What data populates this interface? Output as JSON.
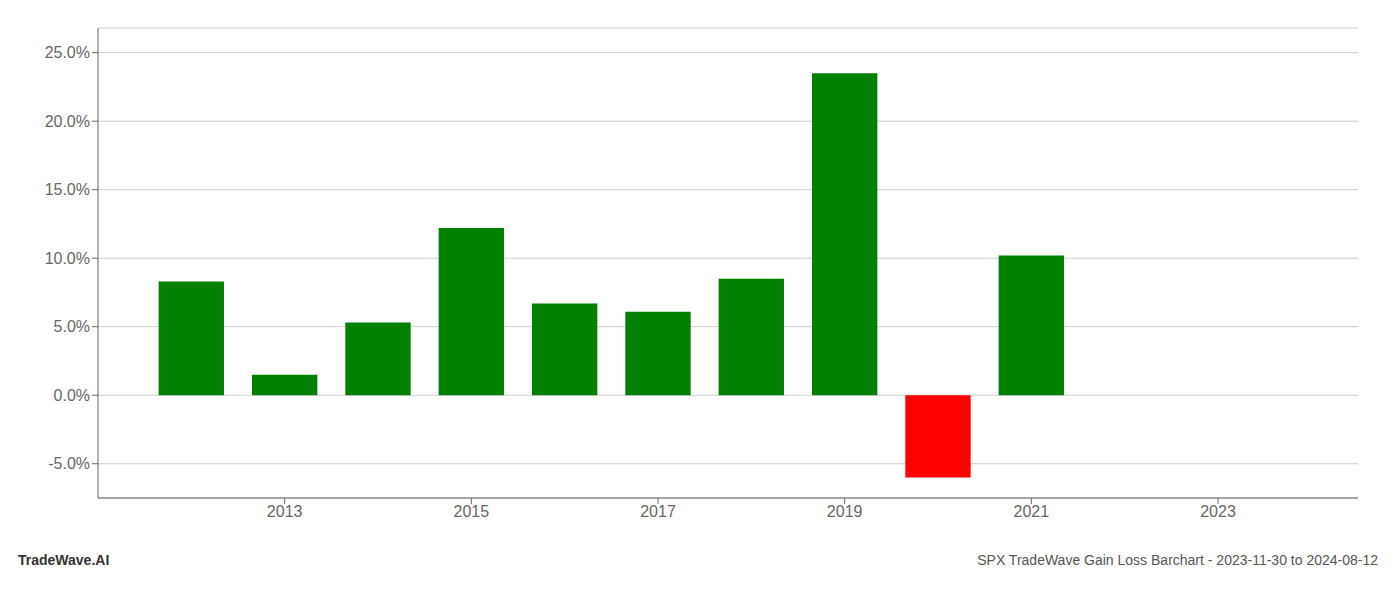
{
  "chart_data": {
    "type": "bar",
    "x": [
      2012,
      2013,
      2014,
      2015,
      2016,
      2017,
      2018,
      2019,
      2020,
      2021,
      2022
    ],
    "values": [
      0.083,
      0.015,
      0.053,
      0.122,
      0.067,
      0.061,
      0.085,
      0.235,
      -0.06,
      0.102,
      0.0
    ],
    "colors": [
      "#008000",
      "#008000",
      "#008000",
      "#008000",
      "#008000",
      "#008000",
      "#008000",
      "#008000",
      "#ff0000",
      "#008000",
      "#008000"
    ],
    "xlim": [
      2011.0,
      2024.5
    ],
    "xticks": [
      2013,
      2015,
      2017,
      2019,
      2021,
      2023
    ],
    "ylim": [
      -0.075,
      0.268
    ],
    "yticks": [
      {
        "value": -0.05,
        "label": "-5.0%"
      },
      {
        "value": 0.0,
        "label": "0.0%"
      },
      {
        "value": 0.05,
        "label": "5.0%"
      },
      {
        "value": 0.1,
        "label": "10.0%"
      },
      {
        "value": 0.15,
        "label": "15.0%"
      },
      {
        "value": 0.2,
        "label": "20.0%"
      },
      {
        "value": 0.25,
        "label": "25.0%"
      }
    ],
    "grid": true,
    "annotations": [
      "TradeWave.AI",
      "SPX TradeWave Gain Loss Barchart - 2023-11-30 to 2024-08-12"
    ]
  }
}
